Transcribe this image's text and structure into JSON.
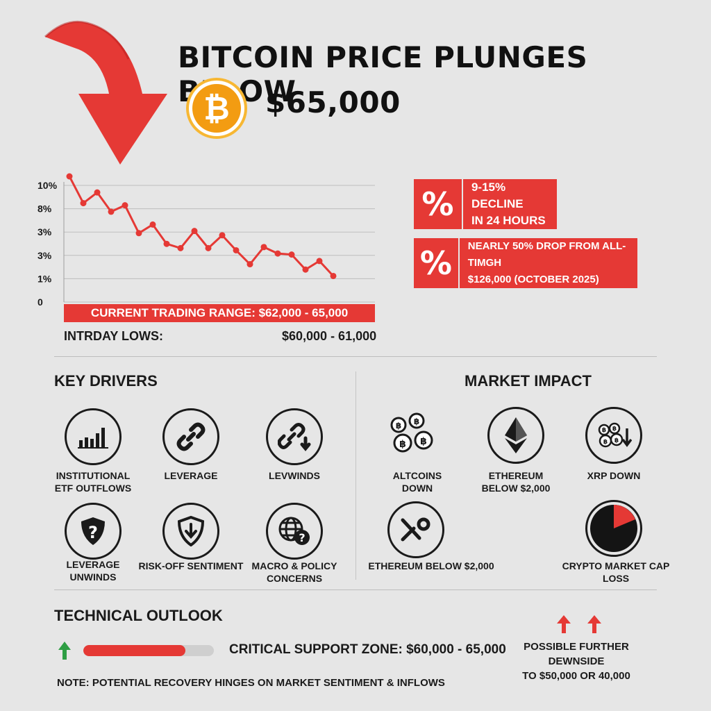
{
  "header": {
    "title_line1": "BITCOIN PRICE PLUNGES BELOW",
    "title_line2": "$65,000",
    "logo_symbol": "₿"
  },
  "colors": {
    "accent_red": "#e53935",
    "bitcoin_orange": "#f39c12",
    "arrow_green": "#2e9e44"
  },
  "chart_data": {
    "type": "line",
    "y_tick_labels": [
      "10%",
      "8%",
      "3%",
      "3%",
      "1%",
      "0"
    ],
    "values": [
      10.5,
      8,
      9,
      7.2,
      7.8,
      5.2,
      6,
      4.2,
      3.8,
      5.4,
      3.8,
      5,
      3.6,
      2.3,
      3.9,
      3.3,
      3.2,
      1.8,
      2.6,
      1.2
    ],
    "ylim": [
      0,
      10.5
    ],
    "grid": true,
    "color": "#e53935"
  },
  "trading": {
    "range_label": "CURRENT TRADING RANGE: $62,000 - 65,000",
    "lows_label": "INTRDAY LOWS:",
    "lows_value": "$60,000 - 61,000"
  },
  "stats": [
    {
      "badge": "%",
      "line1": "9-15% DECLINE",
      "line2": "IN 24 HOURS"
    },
    {
      "badge": "%",
      "line1": "NEARLY 50% DROP FROM ALL-TIMGH",
      "line2": "$126,000 (OCTOBER 2025)"
    }
  ],
  "key_drivers": {
    "title": "KEY DRIVERS",
    "items": [
      {
        "label1": "INSTITUTIONAL",
        "label2": "ETF OUTFLOWS",
        "icon": "bar-chart-icon"
      },
      {
        "label1": "LEVERAGE",
        "label2": "",
        "icon": "chain-link-icon"
      },
      {
        "label1": "LEVWINDS",
        "label2": "",
        "icon": "broken-link-down-icon"
      },
      {
        "label1": "LEVERAGE",
        "label2": "UNWINDS",
        "icon": "shield-question-icon"
      },
      {
        "label1": "RISK-OFF SENTIMENT",
        "label2": "",
        "icon": "shield-down-icon"
      },
      {
        "label1": "MACRO & POLICY",
        "label2": "CONCERNS",
        "icon": "globe-question-icon"
      }
    ]
  },
  "market_impact": {
    "title": "MARKET IMPACT",
    "items": [
      {
        "label1": "ALTCOINS",
        "label2": "DOWN",
        "icon": "coins-icon"
      },
      {
        "label1": "ETHEREUM",
        "label2": "BELOW $2,000",
        "icon": "ethereum-icon"
      },
      {
        "label1": "XRP DOWN",
        "label2": "",
        "icon": "coins-down-icon"
      },
      {
        "label1": "ETHEREUM BELOW $2,000",
        "label2": "",
        "icon": "xrp-icon"
      },
      {
        "label1": "CRYPTO MARKET CAP LOSS",
        "label2": "",
        "icon": "pie-chart-icon"
      }
    ]
  },
  "outlook": {
    "title": "TECHNICAL OUTLOOK",
    "support_label": "CRITICAL SUPPORT ZONE: $60,000 - 65,000",
    "progress": 0.78,
    "downside_line1": "POSSIBLE FURTHER DEWNSIDE",
    "downside_line2": "TO $50,000 OR 40,000",
    "note": "NOTE: POTENTIAL RECOVERY HINGES ON MARKET SENTIMENT & INFLOWS"
  }
}
